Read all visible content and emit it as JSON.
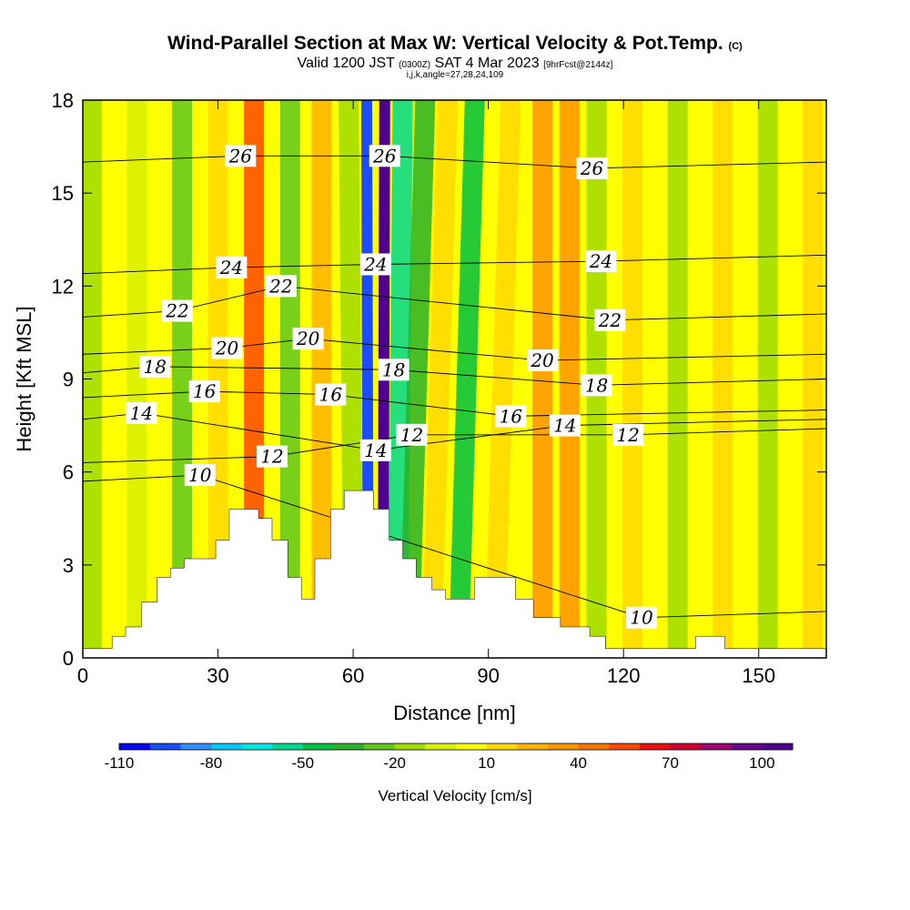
{
  "title": {
    "main": "Wind-Parallel Section at Max W: Vertical Velocity & Pot.Temp.",
    "copyright": "(C)",
    "valid_prefix": "Valid 1200 JST",
    "valid_utc": "(0300Z)",
    "valid_date": "SAT 4 Mar 2023",
    "forecast": "[9hrFcst@2144z]",
    "indices": "i,j,k,angle=27,28,24,109"
  },
  "colors": {
    "scale": [
      "#0000ff",
      "#1c4cff",
      "#2e8cff",
      "#00c8ff",
      "#00e8e0",
      "#00d890",
      "#00c040",
      "#2ab02a",
      "#60c81c",
      "#a0dc00",
      "#d8f000",
      "#ffff00",
      "#ffd800",
      "#ffb400",
      "#ff9400",
      "#ff7400",
      "#ff4800",
      "#ee1010",
      "#d00030",
      "#a00070",
      "#680090",
      "#500090"
    ],
    "terrain": "#ffffff",
    "contour": "#000000"
  },
  "chart_data": {
    "type": "heatmap",
    "xlabel": "Distance [nm]",
    "ylabel": "Height [Kft MSL]",
    "xlim": [
      0,
      165
    ],
    "ylim": [
      0,
      18
    ],
    "xticks": [
      0,
      30,
      60,
      90,
      120,
      150
    ],
    "yticks": [
      0,
      3,
      6,
      9,
      12,
      15,
      18
    ],
    "colorbar": {
      "label": "Vertical Velocity [cm/s]",
      "min": -110,
      "max": 110,
      "tick_values": [
        -110,
        -80,
        -50,
        -20,
        10,
        40,
        70,
        100
      ]
    },
    "terrain_profile": [
      [
        0,
        0.3
      ],
      [
        6.5,
        0.3
      ],
      [
        6.5,
        0.7
      ],
      [
        9.5,
        0.7
      ],
      [
        9.5,
        1.0
      ],
      [
        13,
        1.0
      ],
      [
        13,
        1.8
      ],
      [
        16.5,
        1.8
      ],
      [
        16.5,
        2.6
      ],
      [
        19.5,
        2.6
      ],
      [
        19.5,
        2.9
      ],
      [
        22.5,
        2.9
      ],
      [
        22.5,
        3.2
      ],
      [
        29.5,
        3.2
      ],
      [
        29.5,
        3.8
      ],
      [
        32.5,
        3.8
      ],
      [
        32.5,
        4.8
      ],
      [
        39,
        4.8
      ],
      [
        39,
        4.5
      ],
      [
        42,
        4.5
      ],
      [
        42,
        3.8
      ],
      [
        45.5,
        3.8
      ],
      [
        45.5,
        2.6
      ],
      [
        48.5,
        2.6
      ],
      [
        48.5,
        1.9
      ],
      [
        51.5,
        1.9
      ],
      [
        51.5,
        3.2
      ],
      [
        55,
        3.2
      ],
      [
        55,
        4.8
      ],
      [
        58,
        4.8
      ],
      [
        58,
        5.4
      ],
      [
        64.5,
        5.4
      ],
      [
        64.5,
        4.8
      ],
      [
        68,
        4.8
      ],
      [
        68,
        3.8
      ],
      [
        71,
        3.8
      ],
      [
        71,
        3.2
      ],
      [
        74,
        3.2
      ],
      [
        74,
        2.6
      ],
      [
        77.5,
        2.6
      ],
      [
        77.5,
        2.2
      ],
      [
        80.5,
        2.2
      ],
      [
        80.5,
        1.9
      ],
      [
        87,
        1.9
      ],
      [
        87,
        2.6
      ],
      [
        96,
        2.6
      ],
      [
        96,
        1.9
      ],
      [
        100,
        1.9
      ],
      [
        100,
        1.3
      ],
      [
        106,
        1.3
      ],
      [
        106,
        1.0
      ],
      [
        112.5,
        1.0
      ],
      [
        112.5,
        0.7
      ],
      [
        116,
        0.7
      ],
      [
        116,
        0.3
      ],
      [
        136,
        0.3
      ],
      [
        136,
        0.7
      ],
      [
        142.5,
        0.7
      ],
      [
        142.5,
        0.3
      ],
      [
        165,
        0.3
      ]
    ],
    "vertical_velocity_bands": [
      {
        "x": 2,
        "w": -15
      },
      {
        "x": 12,
        "w": -5
      },
      {
        "x": 22,
        "w": -25
      },
      {
        "x": 30,
        "w": 10
      },
      {
        "x": 38,
        "w": 50
      },
      {
        "x": 46,
        "w": -30
      },
      {
        "x": 53,
        "w": 20
      },
      {
        "x": 59,
        "w": -20
      },
      {
        "x": 63,
        "w": -100
      },
      {
        "x": 67,
        "w": 110
      },
      {
        "x": 71,
        "w": -60
      },
      {
        "x": 76,
        "w": -35
      },
      {
        "x": 81,
        "w": 10
      },
      {
        "x": 87,
        "w": -45
      },
      {
        "x": 95,
        "w": 10
      },
      {
        "x": 102,
        "w": 30
      },
      {
        "x": 108,
        "w": 40
      },
      {
        "x": 114,
        "w": -20
      },
      {
        "x": 122,
        "w": 10
      },
      {
        "x": 132,
        "w": -20
      },
      {
        "x": 142,
        "w": 10
      },
      {
        "x": 152,
        "w": -20
      },
      {
        "x": 162,
        "w": 10
      }
    ],
    "potential_temperature_contours": [
      {
        "value": 10,
        "label_positions": [
          [
            26,
            5.9
          ],
          [
            124,
            1.3
          ]
        ]
      },
      {
        "value": 12,
        "label_positions": [
          [
            42,
            6.5
          ],
          [
            73,
            7.2
          ],
          [
            121,
            7.2
          ]
        ]
      },
      {
        "value": 14,
        "label_positions": [
          [
            13,
            7.9
          ],
          [
            65,
            6.7
          ],
          [
            107,
            7.5
          ]
        ]
      },
      {
        "value": 16,
        "label_positions": [
          [
            27,
            8.6
          ],
          [
            55,
            8.5
          ],
          [
            95,
            7.8
          ]
        ]
      },
      {
        "value": 18,
        "label_positions": [
          [
            16,
            9.4
          ],
          [
            69,
            9.3
          ],
          [
            114,
            8.8
          ]
        ]
      },
      {
        "value": 20,
        "label_positions": [
          [
            32,
            10.0
          ],
          [
            50,
            10.3
          ],
          [
            102,
            9.6
          ]
        ]
      },
      {
        "value": 22,
        "label_positions": [
          [
            21,
            11.2
          ],
          [
            44,
            12.0
          ],
          [
            117,
            10.9
          ]
        ]
      },
      {
        "value": 24,
        "label_positions": [
          [
            33,
            12.6
          ],
          [
            65,
            12.7
          ],
          [
            115,
            12.8
          ]
        ]
      },
      {
        "value": 26,
        "label_positions": [
          [
            35,
            16.2
          ],
          [
            67,
            16.2
          ],
          [
            113,
            15.8
          ]
        ]
      }
    ]
  }
}
